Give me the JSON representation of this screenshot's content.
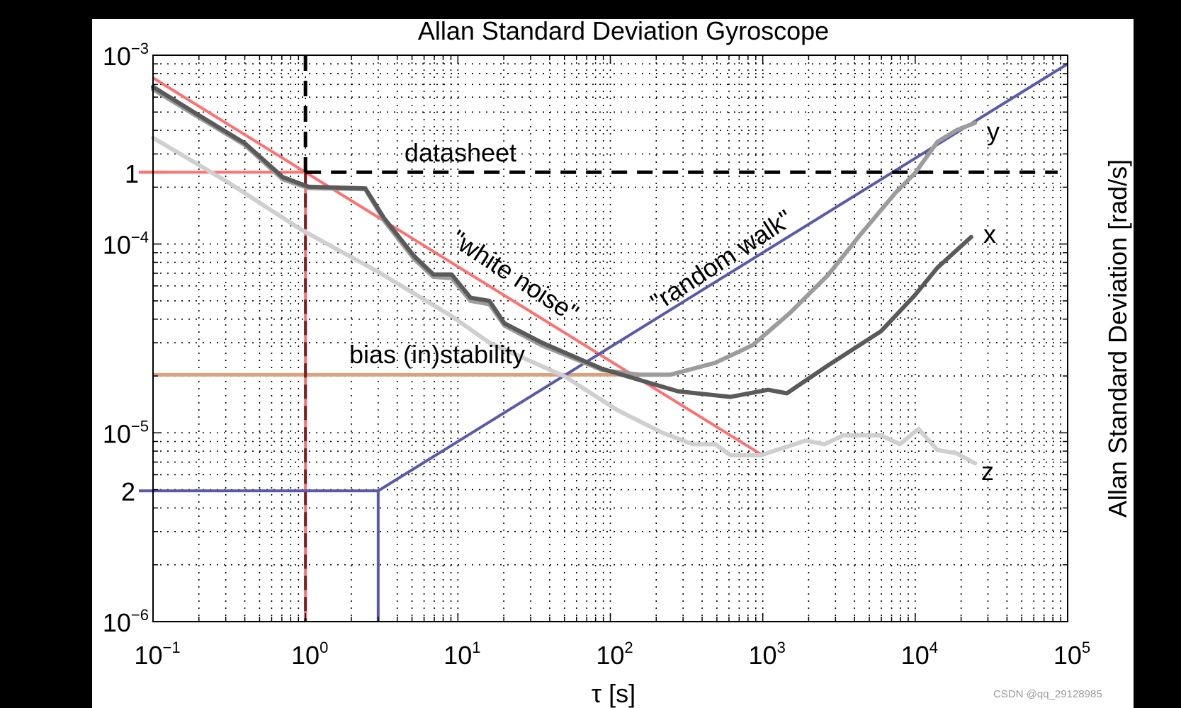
{
  "watermark": "CSDN @qq_29128985",
  "chart_data": {
    "type": "line",
    "title": "Allan Standard Deviation Gyroscope",
    "xlabel": "τ [s]",
    "ylabel": "Allan Standard Deviation [rad/s]",
    "xscale": "log",
    "yscale": "log",
    "xlim": [
      0.1,
      100000
    ],
    "ylim": [
      1e-06,
      0.001
    ],
    "grid": true,
    "xtick_labels": [
      {
        "base": "10",
        "exp": "−1",
        "value": 0.1
      },
      {
        "base": "10",
        "exp": "0",
        "value": 1
      },
      {
        "base": "10",
        "exp": "1",
        "value": 10
      },
      {
        "base": "10",
        "exp": "2",
        "value": 100
      },
      {
        "base": "10",
        "exp": "3",
        "value": 1000
      },
      {
        "base": "10",
        "exp": "4",
        "value": 10000
      },
      {
        "base": "10",
        "exp": "5",
        "value": 100000
      }
    ],
    "ytick_labels": [
      {
        "base": "10",
        "exp": "−3",
        "value": 0.001
      },
      {
        "base": "10",
        "exp": "−4",
        "value": 0.0001
      },
      {
        "base": "10",
        "exp": "−5",
        "value": 1e-05
      },
      {
        "base": "10",
        "exp": "−6",
        "value": 1e-06
      }
    ],
    "series": [
      {
        "name": "x",
        "color": "#5a5a5a",
        "x": [
          0.1,
          0.19,
          0.4,
          0.71,
          1.05,
          2.47,
          3.28,
          5.18,
          6.9,
          9.1,
          12.1,
          16.1,
          20.2,
          35.7,
          88.7,
          157,
          277,
          614,
          1084,
          1440,
          2690,
          5960,
          9950,
          14000,
          23300
        ],
        "y": [
          0.00068,
          0.000493,
          0.000342,
          0.000226,
          0.000201,
          0.000197,
          0.000137,
          8.6e-05,
          6.9e-05,
          6.9e-05,
          5.2e-05,
          5e-05,
          3.8e-05,
          3e-05,
          2.18e-05,
          1.9e-05,
          1.66e-05,
          1.55e-05,
          1.69e-05,
          1.62e-05,
          2.28e-05,
          3.45e-05,
          5.36e-05,
          7.5e-05,
          0.000109
        ]
      },
      {
        "name": "y",
        "color": "#9c9c9c",
        "x": [
          0.1,
          0.19,
          0.4,
          0.71,
          1.05,
          2.47,
          3.28,
          5.18,
          6.9,
          9.1,
          12.1,
          16.1,
          20.2,
          35.7,
          88.7,
          157,
          247,
          489,
          863,
          1520,
          2690,
          4240,
          7480,
          9950,
          14000,
          18600,
          24700
        ],
        "y": [
          0.00066,
          0.00048,
          0.000335,
          0.00022,
          0.000198,
          0.000195,
          0.000133,
          8.3e-05,
          6.7e-05,
          6.6e-05,
          5e-05,
          4.8e-05,
          3.7e-05,
          2.9e-05,
          2.15e-05,
          2.03e-05,
          2.03e-05,
          2.35e-05,
          2.92e-05,
          4.34e-05,
          6.87e-05,
          0.000109,
          0.000188,
          0.000237,
          0.000348,
          0.0004,
          0.000438
        ]
      },
      {
        "name": "z",
        "color": "#cfcfcf",
        "x": [
          0.1,
          0.3,
          0.94,
          2.93,
          9.1,
          16.1,
          50.2,
          111,
          220,
          347,
          489,
          614,
          966,
          1910,
          2540,
          3370,
          5960,
          7930,
          10500,
          14000,
          18600,
          24700
        ],
        "y": [
          0.000365,
          0.000216,
          0.000119,
          7.2e-05,
          4.15e-05,
          3e-05,
          1.99e-05,
          1.32e-05,
          1e-05,
          8.7e-06,
          8.7e-06,
          7.6e-06,
          7.6e-06,
          9.1e-06,
          8.7e-06,
          9.7e-06,
          9.7e-06,
          8.7e-06,
          1.05e-05,
          8.1e-06,
          7.8e-06,
          6.9e-06
        ]
      }
    ],
    "reference_lines": {
      "white_noise": {
        "label": "\"white noise\"",
        "color": "#ff7070",
        "slope": -0.5,
        "tau_range": [
          0.1,
          1000
        ],
        "value_at_tau1": 0.00024
      },
      "random_walk": {
        "label": "\"random walk\"",
        "color": "#5a5aaa",
        "slope": 0.5,
        "tau_range": [
          3,
          100000
        ],
        "value_at_tau3": 4.93e-06
      },
      "bias_instability": {
        "label": "bias (in)stability",
        "color": "#dba27e",
        "value": 2.03e-05,
        "tau_range": [
          0.1,
          208
        ]
      },
      "datasheet": {
        "label": "datasheet",
        "color": "#000000",
        "value": 0.00024,
        "tau_range": [
          1,
          86000
        ]
      }
    },
    "markers": [
      {
        "label": "1",
        "value": 0.00024,
        "tau": 1
      },
      {
        "label": "2",
        "value": 4.93e-06,
        "tau": 3
      }
    ]
  }
}
